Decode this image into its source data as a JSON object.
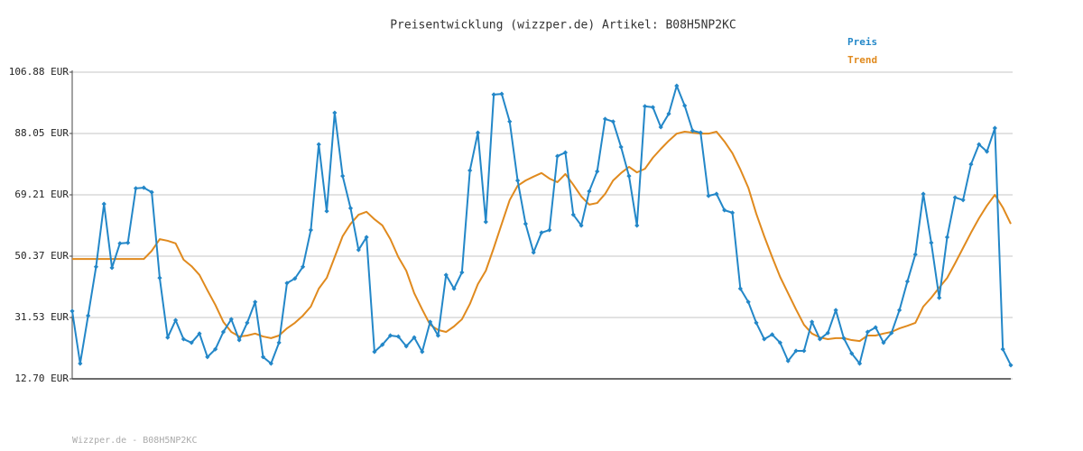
{
  "chart_data": {
    "type": "line",
    "title": "Preisentwicklung (wizzper.de) Artikel: B08H5NP2KC",
    "footer": "Wizzper.de - B08H5NP2KC",
    "ylim": [
      12.7,
      106.88
    ],
    "yticks": [
      {
        "value": 12.7,
        "label": "12.70 EUR"
      },
      {
        "value": 31.53,
        "label": "31.53 EUR"
      },
      {
        "value": 50.37,
        "label": "50.37 EUR"
      },
      {
        "value": 69.21,
        "label": "69.21 EUR"
      },
      {
        "value": 88.05,
        "label": "88.05 EUR"
      },
      {
        "value": 106.88,
        "label": "106.88 EUR"
      }
    ],
    "grid": true,
    "legend": "top-right",
    "series": [
      {
        "name": "Preis",
        "color": "#2387c8",
        "markers": true,
        "values": [
          33.5,
          17.4,
          32.1,
          47.1,
          66.4,
          46.8,
          54.3,
          54.5,
          71.2,
          71.4,
          70.0,
          43.7,
          25.4,
          30.7,
          24.9,
          23.8,
          26.6,
          19.4,
          21.8,
          27.1,
          31.0,
          24.6,
          29.9,
          36.3,
          19.4,
          17.4,
          23.8,
          42.1,
          43.5,
          47.1,
          58.4,
          84.7,
          64.2,
          94.4,
          75.0,
          65.1,
          52.3,
          56.2,
          21.0,
          23.2,
          26.0,
          25.7,
          22.7,
          25.4,
          21.0,
          30.2,
          26.0,
          44.6,
          40.4,
          45.4,
          76.7,
          88.3,
          60.9,
          100.0,
          100.2,
          91.7,
          73.6,
          60.3,
          51.5,
          57.6,
          58.4,
          81.1,
          82.2,
          63.1,
          59.8,
          70.3,
          76.4,
          92.5,
          91.7,
          83.9,
          75.0,
          59.8,
          96.4,
          96.1,
          90.0,
          94.1,
          102.7,
          96.6,
          88.9,
          88.3,
          68.9,
          69.5,
          64.5,
          63.7,
          40.4,
          36.3,
          29.9,
          24.9,
          26.3,
          23.8,
          18.2,
          21.3,
          21.3,
          30.2,
          24.9,
          26.8,
          33.8,
          25.2,
          20.5,
          17.4,
          27.1,
          28.5,
          23.8,
          26.8,
          33.8,
          42.6,
          50.9,
          69.5,
          54.5,
          37.6,
          56.2,
          68.4,
          67.6,
          78.6,
          84.7,
          82.5,
          89.7,
          21.8,
          16.9
        ]
      },
      {
        "name": "Trend",
        "color": "#e08a1e",
        "markers": false,
        "values": [
          49.5,
          49.5,
          49.5,
          49.5,
          49.5,
          49.5,
          49.5,
          49.5,
          49.5,
          49.5,
          52.0,
          55.6,
          55.1,
          54.3,
          49.3,
          47.3,
          44.6,
          39.9,
          35.4,
          30.2,
          27.1,
          25.7,
          26.0,
          26.6,
          25.7,
          25.2,
          26.0,
          28.2,
          29.9,
          32.1,
          34.9,
          40.4,
          43.7,
          50.1,
          56.5,
          60.3,
          63.1,
          64.0,
          61.7,
          59.8,
          55.6,
          50.1,
          45.9,
          39.0,
          34.0,
          29.3,
          27.7,
          27.1,
          28.8,
          31.0,
          35.7,
          41.8,
          45.9,
          52.9,
          60.3,
          67.6,
          72.0,
          73.6,
          74.8,
          75.9,
          74.2,
          73.1,
          75.6,
          72.3,
          68.7,
          66.2,
          66.7,
          69.5,
          73.6,
          75.9,
          77.8,
          76.1,
          77.2,
          80.6,
          83.3,
          85.8,
          88.0,
          88.6,
          88.3,
          88.0,
          88.0,
          88.6,
          85.6,
          82.0,
          77.0,
          71.4,
          63.4,
          56.5,
          50.1,
          44.0,
          39.0,
          34.0,
          29.3,
          26.6,
          25.4,
          24.9,
          25.2,
          25.2,
          24.6,
          24.3,
          26.0,
          26.0,
          26.6,
          27.1,
          28.2,
          29.0,
          29.9,
          34.9,
          37.6,
          40.7,
          43.7,
          48.2,
          52.9,
          57.6,
          62.0,
          65.9,
          69.2,
          65.3,
          60.3
        ]
      }
    ]
  }
}
